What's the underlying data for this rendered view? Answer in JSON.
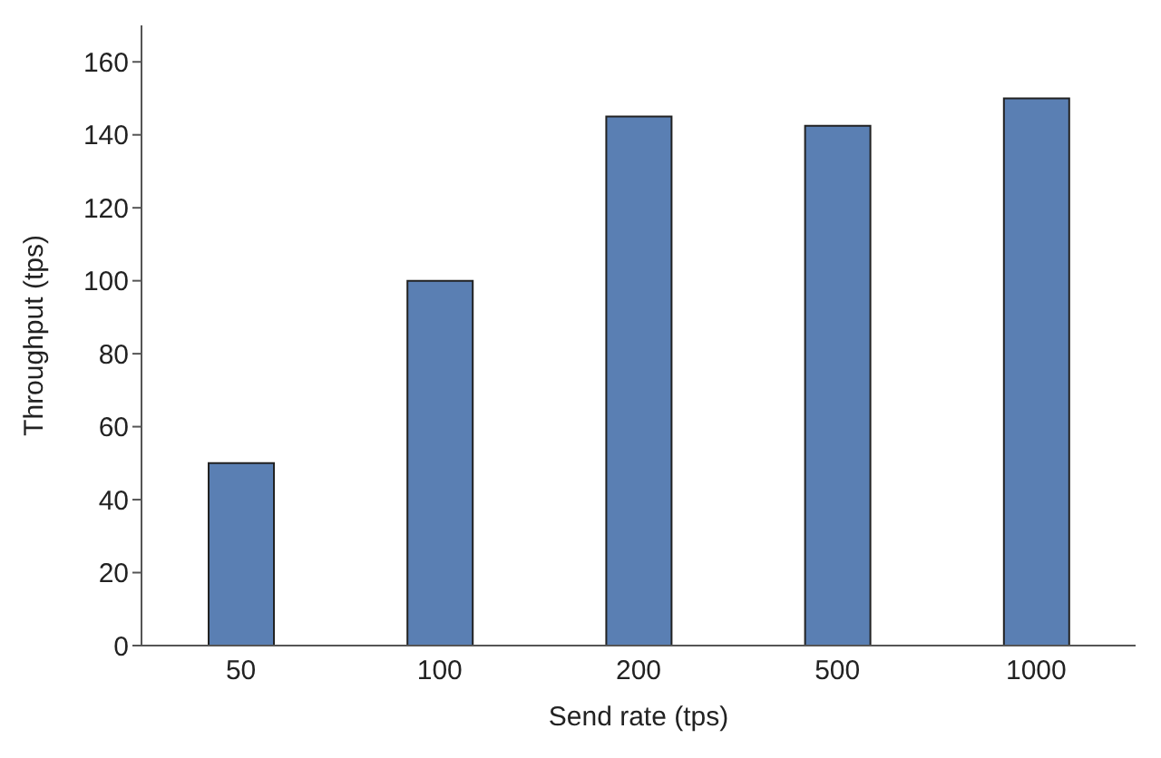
{
  "chart_data": {
    "type": "bar",
    "xlabel": "Send rate (tps)",
    "ylabel": "Throughput (tps)",
    "categories": [
      "50",
      "100",
      "200",
      "500",
      "1000"
    ],
    "values": [
      50,
      100,
      145,
      142.5,
      150
    ],
    "color": "#5a7fb3",
    "ylim": [
      0,
      170
    ],
    "yticks": [
      0,
      20,
      40,
      60,
      80,
      100,
      120,
      140,
      160
    ],
    "grid": false
  }
}
